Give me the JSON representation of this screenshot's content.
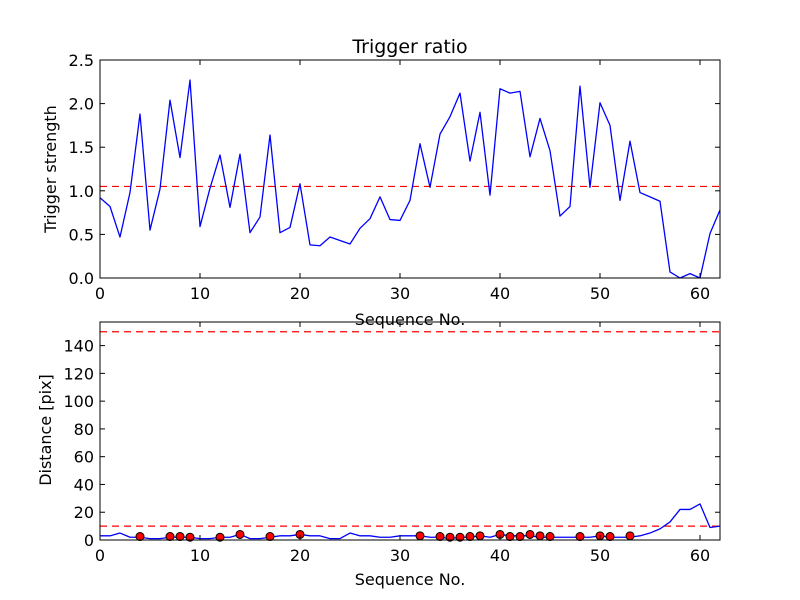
{
  "chart_data": [
    {
      "type": "line",
      "title": "Trigger ratio",
      "xlabel": "Sequence No.",
      "ylabel": "Trigger strength",
      "xlim": [
        0,
        62
      ],
      "ylim": [
        0,
        2.5
      ],
      "xticks": [
        0,
        10,
        20,
        30,
        40,
        50,
        60
      ],
      "yticks": [
        0.0,
        0.5,
        1.0,
        1.5,
        2.0,
        2.5
      ],
      "ytick_labels": [
        "0.0",
        "0.5",
        "1.0",
        "1.5",
        "2.0",
        "2.5"
      ],
      "grid": false,
      "series": [
        {
          "color": "#0000ff",
          "x": [
            0,
            1,
            2,
            3,
            4,
            5,
            6,
            7,
            8,
            9,
            10,
            11,
            12,
            13,
            14,
            15,
            16,
            17,
            18,
            19,
            20,
            21,
            22,
            23,
            24,
            25,
            26,
            27,
            28,
            29,
            30,
            31,
            32,
            33,
            34,
            35,
            36,
            37,
            38,
            39,
            40,
            41,
            42,
            43,
            44,
            45,
            46,
            47,
            48,
            49,
            50,
            51,
            52,
            53,
            54,
            55,
            56,
            57,
            58,
            59,
            60,
            61,
            62
          ],
          "values": [
            0.92,
            0.82,
            0.47,
            0.98,
            1.88,
            0.55,
            1.02,
            2.04,
            1.38,
            2.27,
            0.59,
            1.03,
            1.41,
            0.81,
            1.42,
            0.52,
            0.7,
            1.64,
            0.52,
            0.58,
            1.08,
            0.38,
            0.37,
            0.47,
            0.43,
            0.39,
            0.57,
            0.68,
            0.93,
            0.67,
            0.66,
            0.89,
            1.54,
            1.04,
            1.65,
            1.85,
            2.12,
            1.34,
            1.9,
            0.95,
            2.17,
            2.12,
            2.14,
            1.39,
            1.83,
            1.46,
            0.71,
            0.82,
            2.2,
            1.04,
            2.01,
            1.75,
            0.89,
            1.57,
            0.98,
            0.93,
            0.88,
            0.07,
            0.0,
            0.05,
            0.0,
            0.51,
            0.78
          ]
        }
      ],
      "reference_lines": [
        {
          "y": 1.05,
          "color": "#ff0000",
          "style": "dashed"
        }
      ]
    },
    {
      "type": "line",
      "title": "",
      "xlabel": "Sequence No.",
      "ylabel": "Distance [pix]",
      "xlim": [
        0,
        62
      ],
      "ylim": [
        0,
        157
      ],
      "xticks": [
        0,
        10,
        20,
        30,
        40,
        50,
        60
      ],
      "yticks": [
        0,
        20,
        40,
        60,
        80,
        100,
        120,
        140
      ],
      "ytick_labels": [
        "0",
        "20",
        "40",
        "60",
        "80",
        "100",
        "120",
        "140"
      ],
      "grid": false,
      "series": [
        {
          "color": "#0000ff",
          "x": [
            0,
            1,
            2,
            3,
            4,
            5,
            6,
            7,
            8,
            9,
            10,
            11,
            12,
            13,
            14,
            15,
            16,
            17,
            18,
            19,
            20,
            21,
            22,
            23,
            24,
            25,
            26,
            27,
            28,
            29,
            30,
            31,
            32,
            33,
            34,
            35,
            36,
            37,
            38,
            39,
            40,
            41,
            42,
            43,
            44,
            45,
            46,
            47,
            48,
            49,
            50,
            51,
            52,
            53,
            54,
            55,
            56,
            57,
            58,
            59,
            60,
            61,
            62
          ],
          "values": [
            3,
            3,
            5,
            2,
            2,
            1,
            1,
            2,
            2,
            2,
            1,
            1,
            2,
            2,
            4,
            1,
            1,
            2,
            3,
            3,
            4,
            3,
            3,
            1,
            1,
            5,
            3,
            3,
            2,
            2,
            3,
            3,
            3,
            2,
            2,
            1,
            2,
            2,
            3,
            2,
            4,
            3,
            3,
            3,
            2,
            2,
            2,
            2,
            2,
            2,
            3,
            2,
            2,
            2,
            3,
            5,
            8,
            13,
            22,
            22,
            26,
            9,
            10
          ]
        },
        {
          "color": "#ff0000",
          "marker": "circle",
          "x": [
            4,
            7,
            8,
            9,
            12,
            14,
            17,
            20,
            32,
            34,
            35,
            36,
            37,
            38,
            40,
            41,
            42,
            43,
            44,
            45,
            48,
            50,
            51,
            53
          ],
          "values": [
            2.5,
            2.5,
            2.5,
            2,
            2,
            4,
            2.5,
            4,
            3,
            2.5,
            2,
            2,
            2.5,
            3,
            4,
            2.5,
            2.5,
            4,
            3,
            2.5,
            2.5,
            3,
            2.5,
            3
          ]
        }
      ],
      "reference_lines": [
        {
          "y": 10,
          "color": "#ff0000",
          "style": "dashed"
        },
        {
          "y": 150,
          "color": "#ff0000",
          "style": "dashed"
        }
      ]
    }
  ]
}
